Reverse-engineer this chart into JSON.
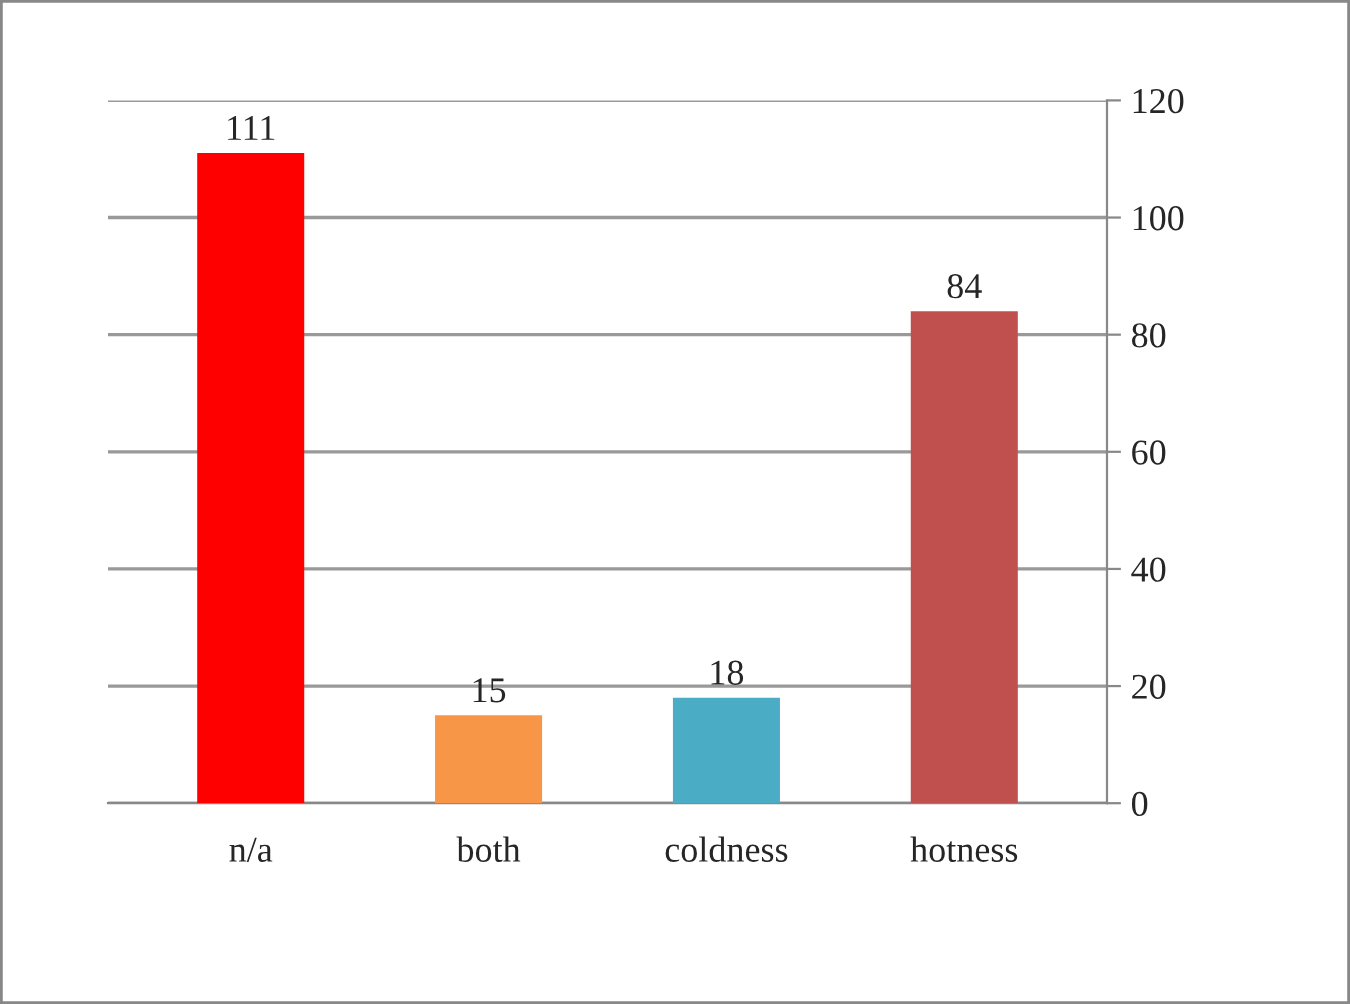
{
  "chart_data": {
    "type": "bar",
    "categories": [
      "n/a",
      "both",
      "coldness",
      "hotness"
    ],
    "values": [
      111,
      15,
      18,
      84
    ],
    "colors": [
      "#ff0000",
      "#f79646",
      "#4bacc6",
      "#c0504d"
    ],
    "ylim": [
      0,
      120
    ],
    "yticks": [
      0,
      20,
      40,
      60,
      80,
      100,
      120
    ],
    "grid": "y",
    "data_labels": true,
    "legend": false
  }
}
